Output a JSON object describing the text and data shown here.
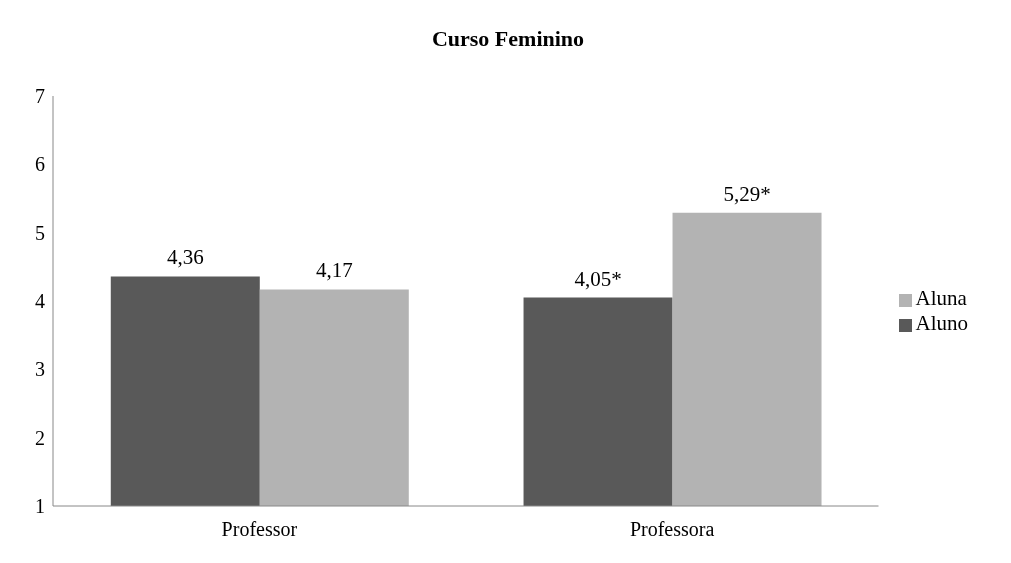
{
  "chart_data": {
    "type": "bar",
    "title": "Curso Feminino",
    "categories": [
      "Professor",
      "Professora"
    ],
    "series": [
      {
        "name": "Aluno",
        "color": "#595959",
        "values": [
          4.36,
          4.05
        ],
        "value_labels": [
          "4,36",
          "4,05*"
        ]
      },
      {
        "name": "Aluna",
        "color": "#b3b3b3",
        "values": [
          4.17,
          5.29
        ],
        "value_labels": [
          "4,17",
          "5,29*"
        ]
      }
    ],
    "ylim": [
      1,
      7
    ],
    "yticks": [
      1,
      2,
      3,
      4,
      5,
      6,
      7
    ],
    "grid": false,
    "legend": "right"
  }
}
